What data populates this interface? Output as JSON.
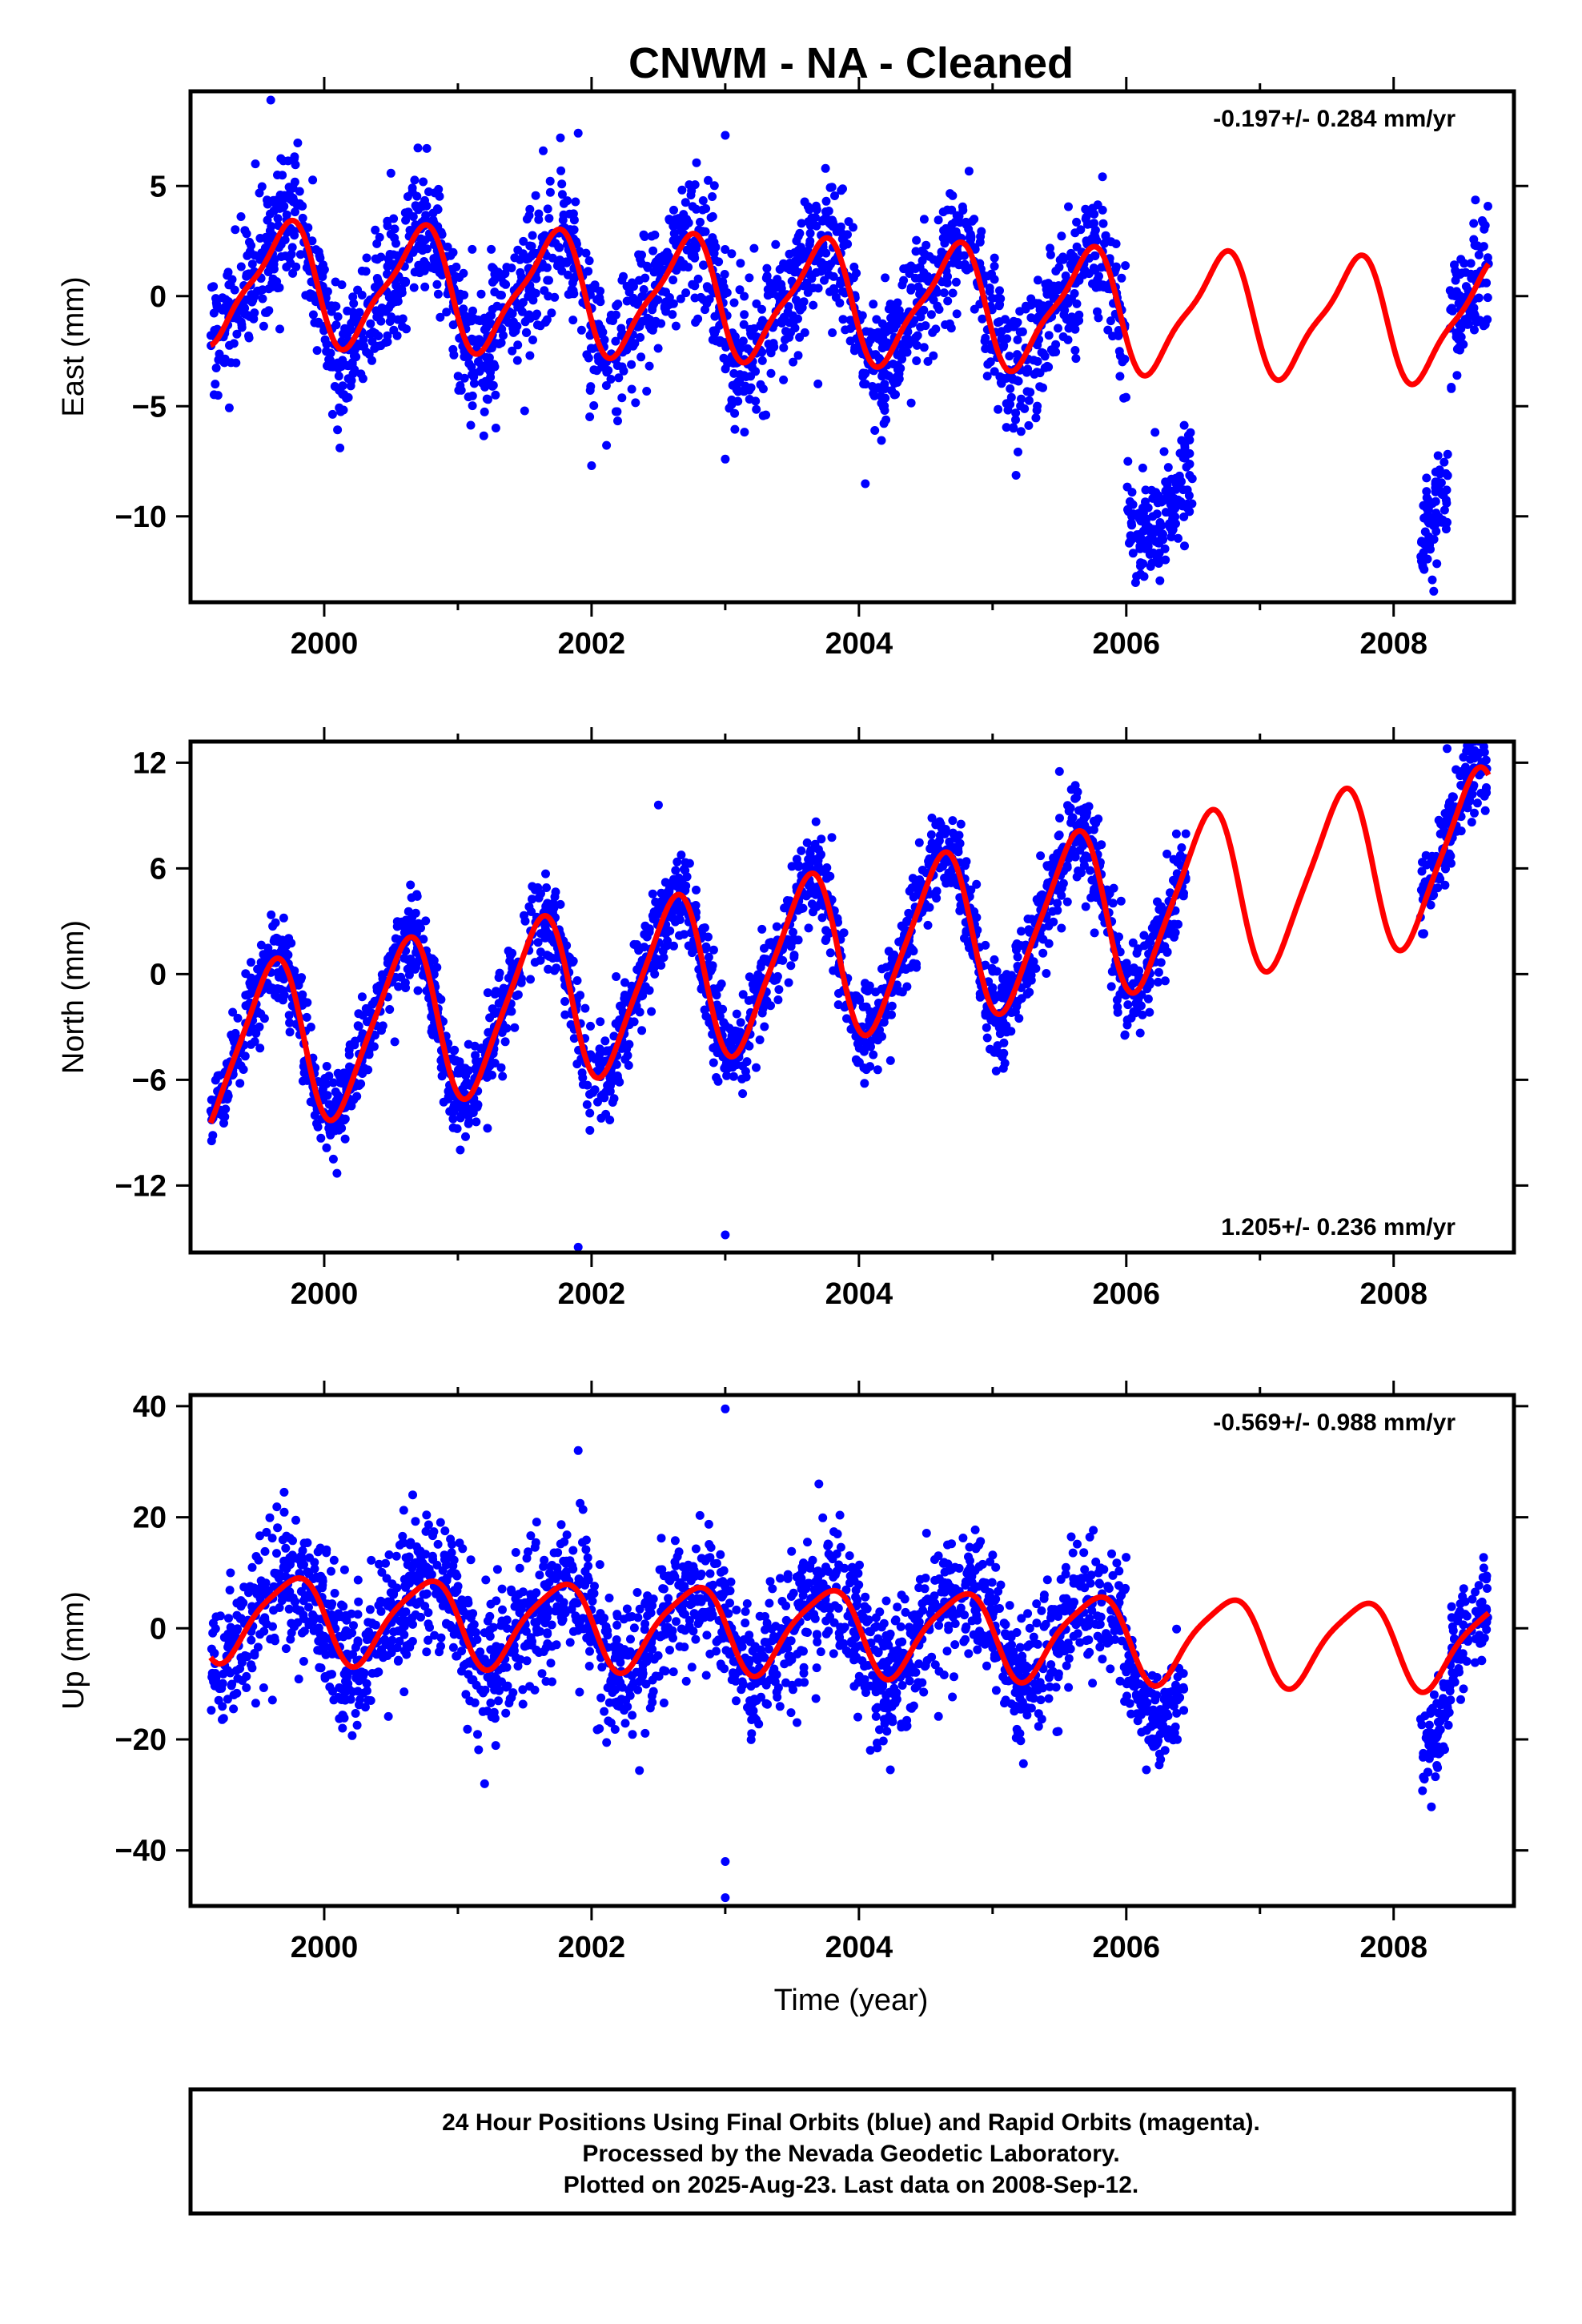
{
  "page": {
    "title": "CNWM  - NA - Cleaned",
    "xlabel": "Time (year)",
    "caption": [
      "24 Hour Positions Using Final Orbits (blue) and Rapid Orbits (magenta).",
      "Processed by the Nevada Geodetic Laboratory.",
      "Plotted on 2025-Aug-23. Last data on 2008-Sep-12."
    ]
  },
  "colors": {
    "points": "#0000ff",
    "model": "#ff0000",
    "frame": "#000000"
  },
  "chart_data": [
    {
      "type": "scatter",
      "name": "east",
      "ylabel": "East (mm)",
      "rate_label": "-0.197+/- 0.284 mm/yr",
      "rate_position": "top-right",
      "xlim": [
        1999.0,
        2008.9
      ],
      "ylim": [
        -13.9,
        9.3
      ],
      "xticks": [
        2000,
        2002,
        2004,
        2006,
        2008
      ],
      "xtick_labels": [
        "2000",
        "2002",
        "2004",
        "2006",
        "2008"
      ],
      "yticks": [
        5,
        0,
        -5,
        -10
      ],
      "ytick_labels": [
        "5",
        "0",
        "−5",
        "−10"
      ],
      "model": {
        "amp": 2.6,
        "phase": 1999.45,
        "semi": 0.7,
        "semi_phase": 1999.2,
        "mean": -0.3,
        "rate": -0.197,
        "t0": 2004.0
      },
      "data_segments": [
        {
          "start": 1999.15,
          "end": 2006.0,
          "offset": 0.0,
          "sigma": 1.5
        },
        {
          "start": 2006.0,
          "end": 2006.5,
          "offset": -7.5,
          "sigma": 1.2
        },
        {
          "start": 2008.2,
          "end": 2008.42,
          "offset": -7.5,
          "sigma": 1.3
        },
        {
          "start": 2008.42,
          "end": 2008.71,
          "offset": 0.0,
          "sigma": 1.4
        }
      ],
      "outliers": [
        [
          1999.6,
          8.9
        ],
        [
          2001.9,
          7.4
        ],
        [
          2003.0,
          7.3
        ],
        [
          2002.0,
          -7.7
        ],
        [
          2003.0,
          -7.4
        ],
        [
          2003.75,
          5.8
        ],
        [
          2008.3,
          -13.4
        ],
        [
          2006.35,
          -10.6
        ]
      ]
    },
    {
      "type": "scatter",
      "name": "north",
      "ylabel": "North (mm)",
      "rate_label": "1.205+/- 0.236 mm/yr",
      "rate_position": "bottom-right",
      "xlim": [
        1999.0,
        2008.9
      ],
      "ylim": [
        -15.8,
        13.2
      ],
      "xticks": [
        2000,
        2002,
        2004,
        2006,
        2008
      ],
      "xtick_labels": [
        "2000",
        "2002",
        "2004",
        "2006",
        "2008"
      ],
      "yticks": [
        12,
        6,
        0,
        -6,
        -12
      ],
      "ytick_labels": [
        "12",
        "6",
        "0",
        "−6",
        "−12"
      ],
      "model": {
        "amp": 4.6,
        "phase": 1999.35,
        "semi": 0.8,
        "semi_phase": 1999.1,
        "mean": 1.3,
        "rate": 1.205,
        "t0": 2004.0
      },
      "data_segments": [
        {
          "start": 1999.15,
          "end": 2006.45,
          "offset": 0.0,
          "sigma": 1.3
        },
        {
          "start": 2008.2,
          "end": 2008.71,
          "offset": 0.0,
          "sigma": 1.3
        }
      ],
      "outliers": [
        [
          2001.9,
          -15.5
        ],
        [
          2003.0,
          -14.8
        ],
        [
          2002.5,
          9.6
        ],
        [
          2005.5,
          11.5
        ],
        [
          2008.4,
          12.8
        ]
      ]
    },
    {
      "type": "scatter",
      "name": "up",
      "ylabel": "Up (mm)",
      "rate_label": "-0.569+/- 0.988 mm/yr",
      "rate_position": "top-right",
      "xlim": [
        1999.0,
        2008.9
      ],
      "ylim": [
        -50,
        42
      ],
      "xticks": [
        2000,
        2002,
        2004,
        2006,
        2008
      ],
      "xtick_labels": [
        "2000",
        "2002",
        "2004",
        "2006",
        "2008"
      ],
      "yticks": [
        40,
        20,
        0,
        -20,
        -40
      ],
      "ytick_labels": [
        "40",
        "20",
        "0",
        "−20",
        "−40"
      ],
      "model": {
        "amp": 7.5,
        "phase": 1999.5,
        "semi": 1.5,
        "semi_phase": 1999.3,
        "mean": -0.5,
        "rate": -0.569,
        "t0": 2004.0
      },
      "data_segments": [
        {
          "start": 1999.15,
          "end": 2006.0,
          "offset": 0.0,
          "sigma": 6.0
        },
        {
          "start": 2006.0,
          "end": 2006.45,
          "offset": -6.0,
          "sigma": 4.0
        },
        {
          "start": 2008.2,
          "end": 2008.42,
          "offset": -10.0,
          "sigma": 4.0
        },
        {
          "start": 2008.42,
          "end": 2008.71,
          "offset": 0.0,
          "sigma": 5.0
        }
      ],
      "outliers": [
        [
          2003.0,
          39.5
        ],
        [
          2003.0,
          -42
        ],
        [
          2003.0,
          -48.5
        ],
        [
          2001.9,
          32
        ],
        [
          1999.7,
          24.5
        ],
        [
          2003.7,
          26
        ],
        [
          2001.2,
          -28
        ]
      ]
    }
  ]
}
